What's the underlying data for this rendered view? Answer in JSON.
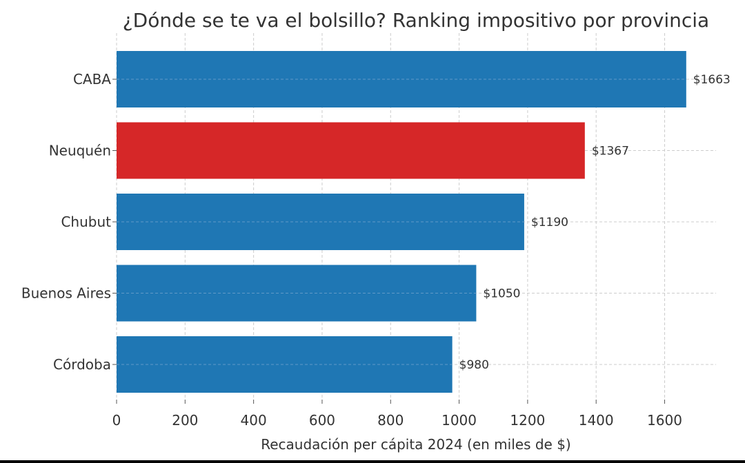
{
  "chart_data": {
    "type": "bar",
    "orientation": "horizontal",
    "title": "¿Dónde se te va el bolsillo? Ranking impositivo por provincia",
    "xlabel": "Recaudación per cápita 2024 (en miles de $)",
    "ylabel": "",
    "categories": [
      "CABA",
      "Neuquén",
      "Chubut",
      "Buenos Aires",
      "Córdoba"
    ],
    "values": [
      1663,
      1367,
      1190,
      1050,
      980
    ],
    "value_labels": [
      "$1663",
      "$1367",
      "$1190",
      "$1050",
      "$980"
    ],
    "highlight_category": "Neuquén",
    "xlim": [
      0,
      1750
    ],
    "xticks": [
      0,
      200,
      400,
      600,
      800,
      1000,
      1200,
      1400,
      1600
    ],
    "grid": true,
    "colors": {
      "default_bar": "#1f77b4",
      "highlight_bar": "#d62728",
      "grid": "#cccccc",
      "text": "#333333"
    }
  }
}
